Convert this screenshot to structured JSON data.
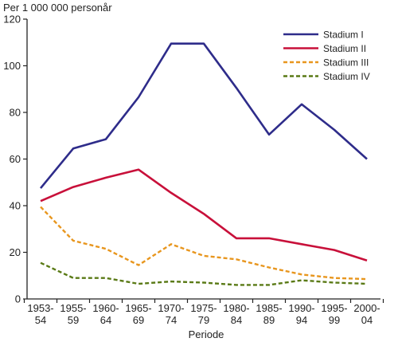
{
  "chart_data": {
    "type": "line",
    "title": "",
    "ylabel": "Per 1 000 000 personår",
    "xlabel": "Periode",
    "ylim": [
      0,
      120
    ],
    "yticks": [
      0,
      20,
      40,
      60,
      80,
      100,
      120
    ],
    "categories": [
      [
        "1953-",
        "54"
      ],
      [
        "1955-",
        "59"
      ],
      [
        "1960-",
        "64"
      ],
      [
        "1965-",
        "69"
      ],
      [
        "1970-",
        "74"
      ],
      [
        "1975-",
        "79"
      ],
      [
        "1980-",
        "84"
      ],
      [
        "1985-",
        "89"
      ],
      [
        "1990-",
        "94"
      ],
      [
        "1995-",
        "99"
      ],
      [
        "2000-",
        "04"
      ]
    ],
    "grid": false,
    "legend_position": "top-right",
    "series": [
      {
        "name": "Stadium I",
        "color": "#2e2c8a",
        "dash": "solid",
        "values": [
          47.5,
          64.5,
          68.5,
          86.5,
          109.5,
          109.5,
          90.5,
          70.5,
          83.5,
          72.5,
          60.0
        ]
      },
      {
        "name": "Stadium II",
        "color": "#c8103a",
        "dash": "solid",
        "values": [
          42.0,
          48.0,
          52.0,
          55.5,
          45.5,
          36.5,
          26.0,
          26.0,
          23.5,
          21.0,
          16.5
        ]
      },
      {
        "name": "Stadium III",
        "color": "#e8961e",
        "dash": "dashed",
        "values": [
          39.5,
          25.0,
          21.5,
          14.5,
          23.5,
          18.5,
          17.0,
          13.5,
          10.5,
          9.0,
          8.5
        ]
      },
      {
        "name": "Stadium IV",
        "color": "#5a7a16",
        "dash": "dashed",
        "values": [
          15.5,
          9.0,
          9.0,
          6.5,
          7.5,
          7.0,
          6.0,
          6.0,
          8.0,
          7.0,
          6.5
        ]
      }
    ]
  }
}
